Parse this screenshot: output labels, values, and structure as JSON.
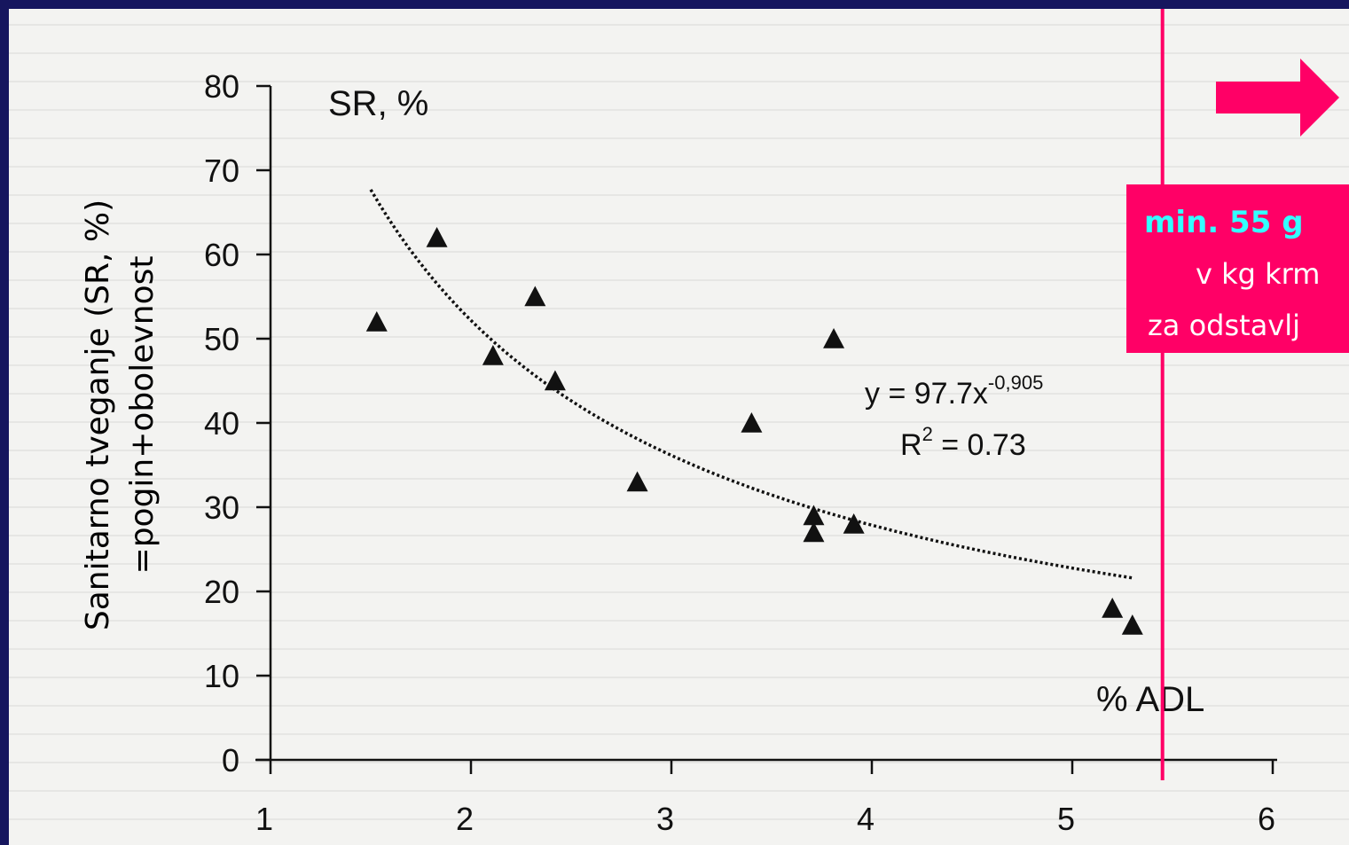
{
  "chart_data": {
    "type": "scatter",
    "y_axis_title": "Sanitarno tveganje (SR, %)",
    "y_axis_subtitle": "=pogin+obolevnost",
    "y_unit_label": "SR, %",
    "x_unit_label": "% ADL",
    "xlim": [
      1,
      6
    ],
    "ylim": [
      0,
      80
    ],
    "x_ticks": [
      "1",
      "2",
      "3",
      "4",
      "5",
      "6"
    ],
    "y_ticks": [
      "0",
      "10",
      "20",
      "30",
      "40",
      "50",
      "60",
      "70",
      "80"
    ],
    "grid": false,
    "points": [
      {
        "x": 1.53,
        "y": 52
      },
      {
        "x": 1.83,
        "y": 62
      },
      {
        "x": 2.11,
        "y": 48
      },
      {
        "x": 2.32,
        "y": 55
      },
      {
        "x": 2.42,
        "y": 45
      },
      {
        "x": 2.83,
        "y": 33
      },
      {
        "x": 3.4,
        "y": 40
      },
      {
        "x": 3.71,
        "y": 29
      },
      {
        "x": 3.71,
        "y": 27
      },
      {
        "x": 3.81,
        "y": 50
      },
      {
        "x": 3.91,
        "y": 28
      },
      {
        "x": 5.2,
        "y": 18
      },
      {
        "x": 5.3,
        "y": 16
      }
    ],
    "trendline": {
      "type": "power",
      "a": 97.7,
      "b": -0.905,
      "x_range": [
        1.5,
        5.3
      ],
      "equation_base": "y = 97.7x",
      "equation_exponent": "-0,905",
      "r2_prefix": "R",
      "r2_sup": "2",
      "r2_suffix": " = 0.73"
    },
    "marker_x": 5.45
  },
  "callout": {
    "line1": "min. 55 g",
    "line2": "v kg krm",
    "line3": "za odstavlj"
  },
  "colors": {
    "background": "#16165e",
    "paper": "#f3f3f1",
    "accent": "#ff0066",
    "callout_bold_text": "#33ffff",
    "callout_text": "#ffffff",
    "marks": "#111111"
  }
}
